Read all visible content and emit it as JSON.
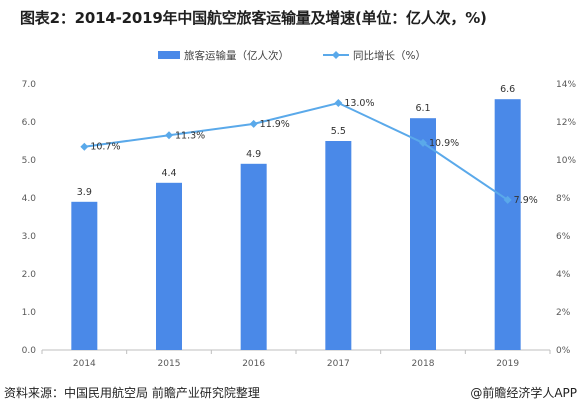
{
  "title": "图表2：2014-2019年中国航空旅客运输量及增速(单位：亿人次，%)",
  "footer": {
    "source": "资料来源：中国民用航空局 前瞻产业研究院整理",
    "brand": "@前瞻经济学人APP"
  },
  "colors": {
    "bar": "#4a89e8",
    "line": "#5aa9ea",
    "axis": "#bfbfbf"
  },
  "chart_data": {
    "type": "bar",
    "categories": [
      "2014",
      "2015",
      "2016",
      "2017",
      "2018",
      "2019"
    ],
    "series": [
      {
        "name": "旅客运输量（亿人次）",
        "kind": "bar",
        "axis": "left",
        "values": [
          3.9,
          4.4,
          4.9,
          5.5,
          6.1,
          6.6
        ],
        "labels": [
          "3.9",
          "4.4",
          "4.9",
          "5.5",
          "6.1",
          "6.6"
        ]
      },
      {
        "name": "同比增长（%）",
        "kind": "line",
        "axis": "right",
        "values": [
          10.7,
          11.3,
          11.9,
          13.0,
          10.9,
          7.9
        ],
        "labels": [
          "10.7%",
          "11.3%",
          "11.9%",
          "13.0%",
          "10.9%",
          "7.9%"
        ]
      }
    ],
    "y_left": {
      "lim": [
        0,
        7
      ],
      "ticks": [
        0,
        1,
        2,
        3,
        4,
        5,
        6,
        7
      ],
      "tick_labels": [
        "0.0",
        "1.0",
        "2.0",
        "3.0",
        "4.0",
        "5.0",
        "6.0",
        "7.0"
      ]
    },
    "y_right": {
      "lim": [
        0,
        14
      ],
      "ticks": [
        0,
        2,
        4,
        6,
        8,
        10,
        12,
        14
      ],
      "tick_labels": [
        "0%",
        "2%",
        "4%",
        "6%",
        "8%",
        "10%",
        "12%",
        "14%"
      ]
    },
    "legend_position": "top-center",
    "grid": false
  }
}
